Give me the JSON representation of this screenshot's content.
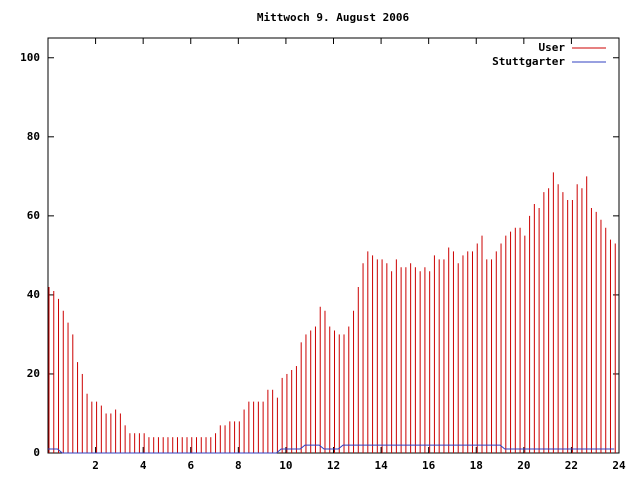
{
  "chart_data": {
    "type": "bar",
    "title": "Mittwoch 9. August 2006",
    "x": [
      0,
      0.2,
      0.4,
      0.6,
      0.8,
      1,
      1.2,
      1.4,
      1.6,
      1.8,
      2,
      2.2,
      2.4,
      2.6,
      2.8,
      3,
      3.2,
      3.4,
      3.6,
      3.8,
      4,
      4.2,
      4.4,
      4.6,
      4.8,
      5,
      5.2,
      5.4,
      5.6,
      5.8,
      6,
      6.2,
      6.4,
      6.6,
      6.8,
      7,
      7.2,
      7.4,
      7.6,
      7.8,
      8,
      8.2,
      8.4,
      8.6,
      8.8,
      9,
      9.2,
      9.4,
      9.6,
      9.8,
      10,
      10.2,
      10.4,
      10.6,
      10.8,
      11,
      11.2,
      11.4,
      11.6,
      11.8,
      12,
      12.2,
      12.4,
      12.6,
      12.8,
      13,
      13.2,
      13.4,
      13.6,
      13.8,
      14,
      14.2,
      14.4,
      14.6,
      14.8,
      15,
      15.2,
      15.4,
      15.6,
      15.8,
      16,
      16.2,
      16.4,
      16.6,
      16.8,
      17,
      17.2,
      17.4,
      17.6,
      17.8,
      18,
      18.2,
      18.4,
      18.6,
      18.8,
      19,
      19.2,
      19.4,
      19.6,
      19.8,
      20,
      20.2,
      20.4,
      20.6,
      20.8,
      21,
      21.2,
      21.4,
      21.6,
      21.8,
      22,
      22.2,
      22.4,
      22.6,
      22.8,
      23,
      23.2,
      23.4,
      23.6,
      23.8
    ],
    "series": [
      {
        "name": "User",
        "color": "#cc0000",
        "style": "impulses",
        "values": [
          42,
          41,
          39,
          36,
          33,
          30,
          23,
          20,
          15,
          13,
          13,
          12,
          10,
          10,
          11,
          10,
          7,
          5,
          5,
          5,
          5,
          4,
          4,
          4,
          4,
          4,
          4,
          4,
          4,
          4,
          4,
          4,
          4,
          4,
          4,
          5,
          7,
          7,
          8,
          8,
          8,
          11,
          13,
          13,
          13,
          13,
          16,
          16,
          14,
          19,
          20,
          21,
          22,
          28,
          30,
          31,
          32,
          37,
          36,
          32,
          31,
          30,
          30,
          32,
          36,
          42,
          48,
          51,
          50,
          49,
          49,
          48,
          46,
          49,
          47,
          47,
          48,
          47,
          46,
          47,
          46,
          50,
          49,
          49,
          52,
          51,
          48,
          50,
          51,
          51,
          53,
          55,
          49,
          49,
          51,
          53,
          55,
          56,
          57,
          57,
          55,
          60,
          63,
          62,
          66,
          67,
          71,
          68,
          66,
          64,
          64,
          68,
          67,
          70,
          62,
          61,
          59,
          57,
          54,
          53
        ]
      },
      {
        "name": "Stuttgarter",
        "color": "#3040c0",
        "style": "line",
        "values": [
          1,
          1,
          1,
          0,
          0,
          0,
          0,
          0,
          0,
          0,
          0,
          0,
          0,
          0,
          0,
          0,
          0,
          0,
          0,
          0,
          0,
          0,
          0,
          0,
          0,
          0,
          0,
          0,
          0,
          0,
          0,
          0,
          0,
          0,
          0,
          0,
          0,
          0,
          0,
          0,
          0,
          0,
          0,
          0,
          0,
          0,
          0,
          0,
          0,
          1,
          1,
          1,
          1,
          1,
          2,
          2,
          2,
          2,
          1,
          1,
          1,
          1,
          2,
          2,
          2,
          2,
          2,
          2,
          2,
          2,
          2,
          2,
          2,
          2,
          2,
          2,
          2,
          2,
          2,
          2,
          2,
          2,
          2,
          2,
          2,
          2,
          2,
          2,
          2,
          2,
          2,
          2,
          2,
          2,
          2,
          2,
          1,
          1,
          1,
          1,
          1,
          1,
          1,
          1,
          1,
          1,
          1,
          1,
          1,
          1,
          1,
          1,
          1,
          1,
          1,
          1,
          1,
          1,
          1,
          1
        ]
      }
    ],
    "xlim": [
      0,
      24
    ],
    "xticks": [
      2,
      4,
      6,
      8,
      10,
      12,
      14,
      16,
      18,
      20,
      22,
      24
    ],
    "ylim": [
      0,
      105
    ],
    "yticks": [
      0,
      20,
      40,
      60,
      80,
      100
    ],
    "legend": "top-right"
  }
}
